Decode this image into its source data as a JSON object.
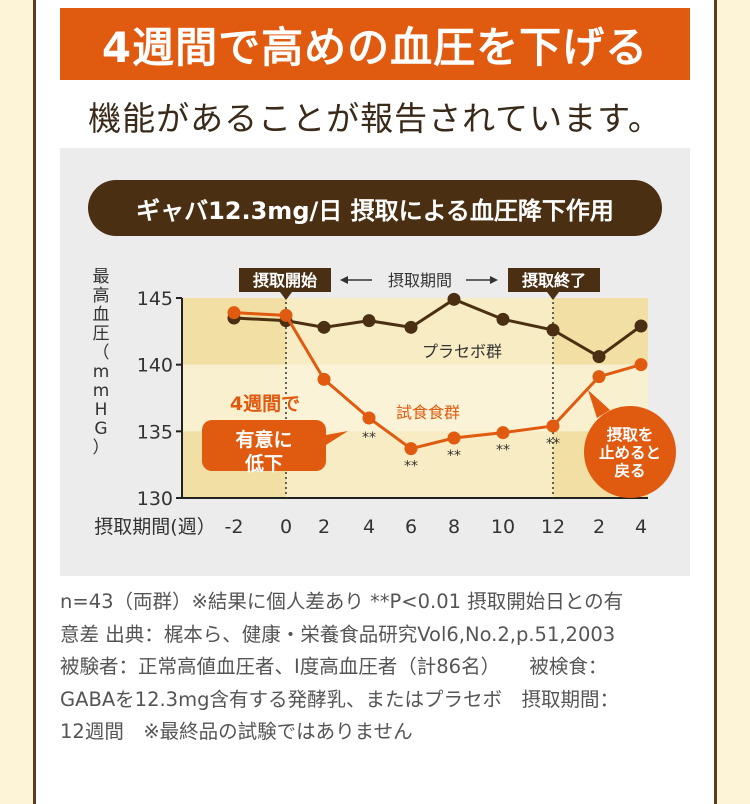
{
  "banner": "4週間で高めの血圧を下げる",
  "subtitle": "機能があることが報告されています。",
  "chart_data": {
    "type": "line",
    "title": "ギャバ12.3mg/日 摂取による血圧降下作用",
    "ylabel": "最高血圧（mmHG）",
    "xlabel": "摂取期間(週）",
    "ylim": [
      130,
      145
    ],
    "yticks": [
      "145",
      "140",
      "135",
      "130"
    ],
    "categories": [
      "-2",
      "0",
      "2",
      "4",
      "6",
      "8",
      "10",
      "12",
      "2",
      "4"
    ],
    "series": [
      {
        "name": "プラセボ群",
        "color": "#4a2f12",
        "values": [
          143.5,
          143.3,
          142.8,
          143.3,
          142.8,
          144.9,
          143.4,
          142.6,
          140.6,
          142.9
        ]
      },
      {
        "name": "試食食群",
        "color": "#e05a10",
        "values": [
          143.9,
          143.7,
          138.9,
          136.0,
          133.7,
          134.5,
          134.9,
          135.4,
          139.1,
          140.0
        ]
      }
    ],
    "significance": [
      "",
      "",
      "",
      "**",
      "**",
      "**",
      "**",
      "**",
      "",
      ""
    ],
    "period_labels": {
      "start": "摂取開始",
      "middle": "摂取期間",
      "end": "摂取終了"
    },
    "annotations": {
      "lead": "4週間で",
      "callout_lines": [
        "有意に",
        "低下"
      ],
      "stop_lines": [
        "摂取を",
        "止めると",
        "戻る"
      ]
    },
    "grid": false,
    "colors": {
      "band_dark": "#f2dfa3",
      "band_light": "#f9f0cf",
      "placebo": "#4a2f12",
      "test": "#e05a10"
    }
  },
  "notes": [
    "n=43（両群）※結果に個人差あり **P<0.01 摂取開始日との有",
    "意差 出典：梶本ら、健康・栄養食品研究Vol6,No.2,p.51,2003",
    "被験者：正常高値血圧者、I度高血圧者（計86名）　　被検食：",
    "GABAを12.3mg含有する発酵乳、またはプラセボ　摂取期間：",
    "12週間　※最終品の試験ではありません"
  ]
}
